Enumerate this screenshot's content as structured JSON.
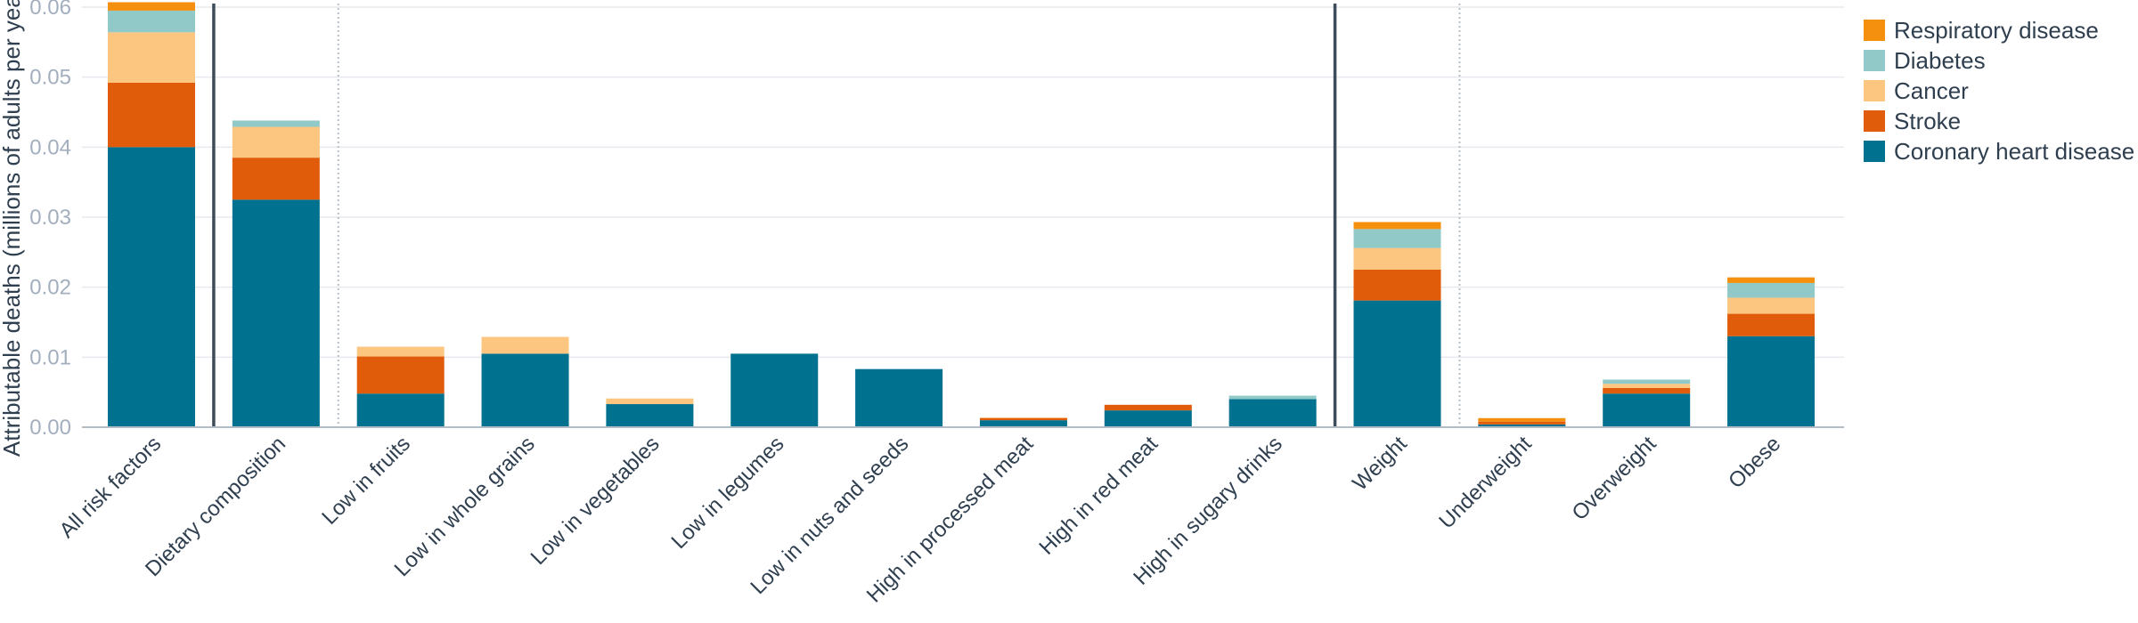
{
  "chart_data": {
    "type": "bar",
    "stacked": true,
    "title": "",
    "xlabel": "",
    "ylabel": "Attributable deaths (millions of adults per year)",
    "ylim": [
      0,
      0.06
    ],
    "yticks": [
      "0.00",
      "0.01",
      "0.02",
      "0.03",
      "0.04",
      "0.05",
      "0.06"
    ],
    "grid": true,
    "legend_position": "top-right",
    "categories": [
      "All risk factors",
      "Dietary composition",
      "Low in fruits",
      "Low in whole grains",
      "Low in vegetables",
      "Low in legumes",
      "Low in nuts and seeds",
      "High in processed meat",
      "High in red meat",
      "High in sugary drinks",
      "Weight",
      "Underweight",
      "Overweight",
      "Obese"
    ],
    "group_separators": [
      {
        "after_category": 0,
        "style": "solid"
      },
      {
        "after_category": 1,
        "style": "dotted"
      },
      {
        "after_category": 9,
        "style": "solid"
      },
      {
        "after_category": 10,
        "style": "dotted"
      }
    ],
    "series": [
      {
        "name": "Coronary heart disease",
        "color": "#00718f",
        "values": [
          0.04,
          0.0325,
          0.0048,
          0.0105,
          0.0033,
          0.0105,
          0.0083,
          0.001,
          0.0024,
          0.004,
          0.0181,
          0.0004,
          0.0048,
          0.013
        ]
      },
      {
        "name": "Stroke",
        "color": "#e05c0b",
        "values": [
          0.0092,
          0.006,
          0.0053,
          0.0,
          0.0,
          0.0,
          0.0,
          0.0003,
          0.0008,
          0.0,
          0.0044,
          0.0004,
          0.0008,
          0.0032
        ]
      },
      {
        "name": "Cancer",
        "color": "#fcc680",
        "values": [
          0.0072,
          0.0044,
          0.0014,
          0.0024,
          0.0008,
          0.0,
          0.0,
          0.0001,
          0.0,
          0.0,
          0.0031,
          0.0,
          0.0006,
          0.0023
        ]
      },
      {
        "name": "Diabetes",
        "color": "#91c8c8",
        "values": [
          0.0031,
          0.0009,
          0.0,
          0.0,
          0.0,
          0.0,
          0.0,
          0.0,
          0.0,
          0.0005,
          0.0027,
          0.0,
          0.0006,
          0.0021
        ]
      },
      {
        "name": "Respiratory disease",
        "color": "#f5900f",
        "values": [
          0.0012,
          0.0,
          0.0,
          0.0,
          0.0,
          0.0,
          0.0,
          0.0,
          0.0,
          0.0,
          0.001,
          0.0005,
          0.0,
          0.0008
        ]
      }
    ]
  }
}
